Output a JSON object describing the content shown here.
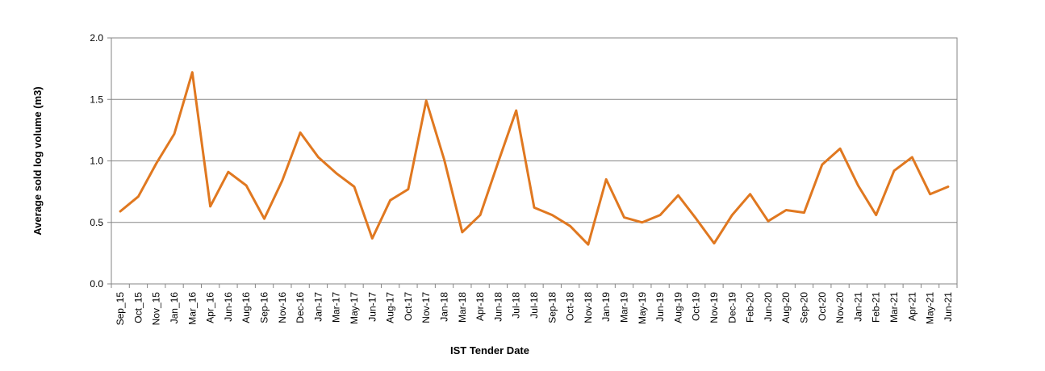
{
  "chart_data": {
    "type": "line",
    "title": "",
    "xlabel": "IST Tender Date",
    "ylabel": "Average sold log volume (m3)",
    "ylim": [
      0,
      2.0
    ],
    "yticks": [
      "0.0",
      "0.5",
      "1.0",
      "1.5",
      "2.0"
    ],
    "grid": "horizontal",
    "legend": "none",
    "color": "#E07820",
    "categories": [
      "Sep_15",
      "Oct_15",
      "Nov_15",
      "Jan_16",
      "Mar_16",
      "Apr_16",
      "Jun-16",
      "Aug-16",
      "Sep-16",
      "Nov-16",
      "Dec-16",
      "Jan-17",
      "Mar-17",
      "May-17",
      "Jun-17",
      "Aug-17",
      "Oct-17",
      "Nov-17",
      "Jan-18",
      "Mar-18",
      "Apr-18",
      "Jun-18",
      "Jul-18",
      "Jul-18",
      "Sep-18",
      "Oct-18",
      "Nov-18",
      "Jan-19",
      "Mar-19",
      "May-19",
      "Jun-19",
      "Aug-19",
      "Oct-19",
      "Nov-19",
      "Dec-19",
      "Feb-20",
      "Jun-20",
      "Aug-20",
      "Sep-20",
      "Oct-20",
      "Nov-20",
      "Jan-21",
      "Feb-21",
      "Mar-21",
      "Apr-21",
      "May-21",
      "Jun-21"
    ],
    "series": [
      {
        "values": [
          0.59,
          0.71,
          0.98,
          1.22,
          1.72,
          0.63,
          0.91,
          0.8,
          0.53,
          0.84,
          1.23,
          1.03,
          0.9,
          0.79,
          0.37,
          0.68,
          0.77,
          1.49,
          1.01,
          0.42,
          0.56,
          0.99,
          1.41,
          0.62,
          0.56,
          0.47,
          0.32,
          0.85,
          0.54,
          0.5,
          0.56,
          0.72,
          0.53,
          0.33,
          0.56,
          0.73,
          0.51,
          0.6,
          0.58,
          0.97,
          1.1,
          0.8,
          0.56,
          0.92,
          1.03,
          0.73,
          0.79
        ]
      }
    ]
  }
}
